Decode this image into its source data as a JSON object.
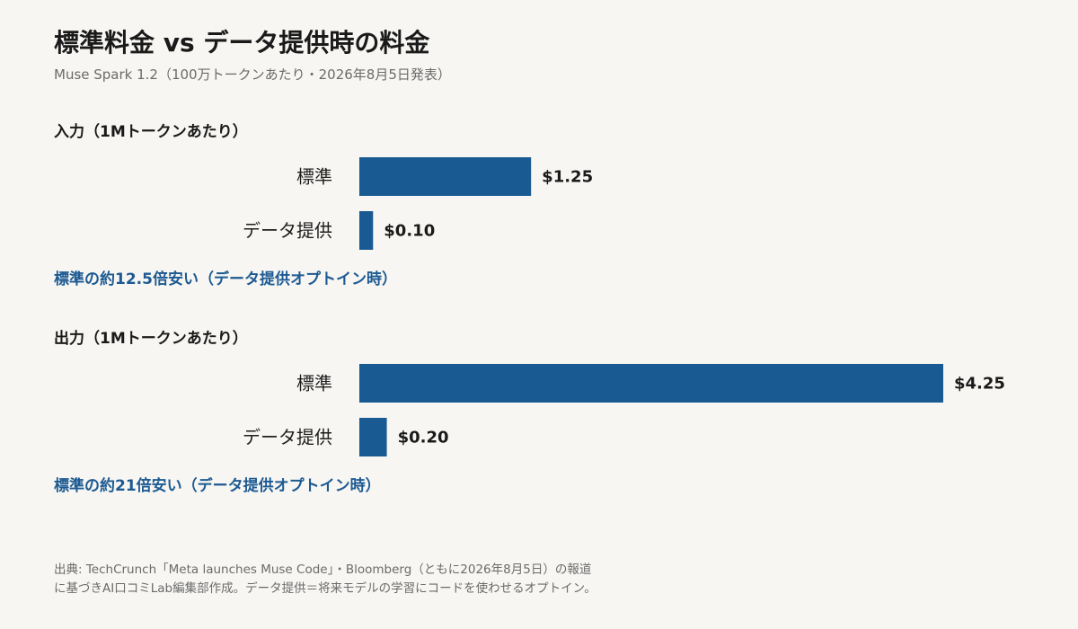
{
  "title": "標準料金 vs データ提供時の料金",
  "subtitle": "Muse Spark 1.2（100万トークンあたり・2026年8月5日発表）",
  "chart_data": [
    {
      "type": "bar",
      "orientation": "horizontal",
      "title": "入力（1Mトークンあたり）",
      "categories": [
        "標準",
        "データ提供"
      ],
      "values": [
        1.25,
        0.1
      ],
      "value_labels": [
        "$1.25",
        "$0.10"
      ],
      "note": "標準の約12.5倍安い（データ提供オプトイン時）",
      "color": "#1a5a92"
    },
    {
      "type": "bar",
      "orientation": "horizontal",
      "title": "出力（1Mトークンあたり）",
      "categories": [
        "標準",
        "データ提供"
      ],
      "values": [
        4.25,
        0.2
      ],
      "value_labels": [
        "$4.25",
        "$0.20"
      ],
      "note": "標準の約21倍安い（データ提供オプトイン時）",
      "color": "#1a5a92"
    }
  ],
  "source": {
    "line1": "出典: TechCrunch「Meta launches Muse Code」・Bloomberg（ともに2026年8月5日）の報道",
    "line2": "に基づきAI口コミLab編集部作成。データ提供＝将来モデルの学習にコードを使わせるオプトイン。"
  }
}
